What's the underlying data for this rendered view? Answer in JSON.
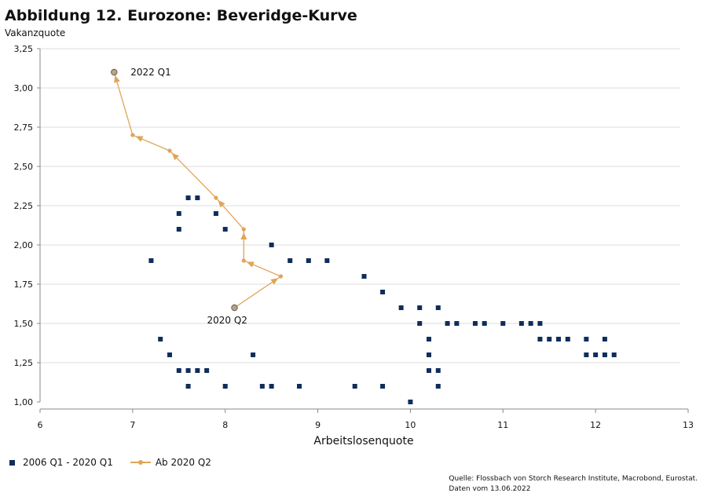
{
  "title": "Abbildung 12. Eurozone: Beveridge-Kurve",
  "chart_data": {
    "type": "scatter",
    "title": "Abbildung 12. Eurozone: Beveridge-Kurve",
    "xlabel": "Arbeitslosenquote",
    "ylabel": "Vakanzquote",
    "xlim": [
      6,
      13
    ],
    "ylim": [
      1.0,
      3.25
    ],
    "x_ticks": [
      "6",
      "7",
      "8",
      "9",
      "10",
      "11",
      "12",
      "13"
    ],
    "y_ticks": [
      "1,00",
      "1,25",
      "1,50",
      "1,75",
      "2,00",
      "2,25",
      "2,50",
      "2,75",
      "3,00",
      "3,25"
    ],
    "grid": "horizontal",
    "legend_position": "bottom-left",
    "series": [
      {
        "name": "2006 Q1 - 2020 Q1",
        "color": "#0f2d5c",
        "marker": "square",
        "points": [
          [
            7.2,
            1.9
          ],
          [
            7.3,
            1.4
          ],
          [
            7.4,
            1.3
          ],
          [
            7.5,
            1.2
          ],
          [
            7.5,
            2.2
          ],
          [
            7.5,
            2.1
          ],
          [
            7.6,
            2.3
          ],
          [
            7.6,
            1.2
          ],
          [
            7.6,
            1.1
          ],
          [
            7.7,
            2.3
          ],
          [
            7.7,
            1.2
          ],
          [
            7.8,
            1.2
          ],
          [
            7.9,
            2.2
          ],
          [
            8.0,
            2.1
          ],
          [
            8.0,
            1.1
          ],
          [
            8.3,
            1.3
          ],
          [
            8.4,
            1.1
          ],
          [
            8.5,
            1.1
          ],
          [
            8.5,
            2.0
          ],
          [
            8.7,
            1.9
          ],
          [
            8.8,
            1.1
          ],
          [
            8.9,
            1.9
          ],
          [
            9.1,
            1.9
          ],
          [
            9.4,
            1.1
          ],
          [
            9.5,
            1.8
          ],
          [
            9.7,
            1.7
          ],
          [
            9.7,
            1.1
          ],
          [
            9.9,
            1.6
          ],
          [
            10.0,
            1.0
          ],
          [
            10.1,
            1.6
          ],
          [
            10.1,
            1.5
          ],
          [
            10.2,
            1.4
          ],
          [
            10.2,
            1.3
          ],
          [
            10.2,
            1.2
          ],
          [
            10.3,
            1.6
          ],
          [
            10.3,
            1.2
          ],
          [
            10.3,
            1.1
          ],
          [
            10.4,
            1.5
          ],
          [
            10.5,
            1.5
          ],
          [
            10.7,
            1.5
          ],
          [
            10.8,
            1.5
          ],
          [
            11.0,
            1.5
          ],
          [
            11.2,
            1.5
          ],
          [
            11.3,
            1.5
          ],
          [
            11.4,
            1.5
          ],
          [
            11.4,
            1.4
          ],
          [
            11.5,
            1.4
          ],
          [
            11.6,
            1.4
          ],
          [
            11.7,
            1.4
          ],
          [
            11.9,
            1.4
          ],
          [
            11.9,
            1.3
          ],
          [
            12.0,
            1.3
          ],
          [
            12.1,
            1.4
          ],
          [
            12.1,
            1.3
          ],
          [
            12.2,
            1.3
          ]
        ]
      },
      {
        "name": "Ab 2020 Q2",
        "color": "#e0a557",
        "marker": "circle",
        "points": [
          [
            8.1,
            1.6
          ],
          [
            8.6,
            1.8
          ],
          [
            8.2,
            1.9
          ],
          [
            8.2,
            2.1
          ],
          [
            7.9,
            2.3
          ],
          [
            7.4,
            2.6
          ],
          [
            7.0,
            2.7
          ],
          [
            6.8,
            3.1
          ]
        ]
      }
    ],
    "annotations": [
      {
        "text": "2022 Q1",
        "x": 6.8,
        "y": 3.1
      },
      {
        "text": "2020 Q2",
        "x": 8.1,
        "y": 1.6
      }
    ]
  },
  "legend": {
    "item1": "2006 Q1 - 2020 Q1",
    "item2": "Ab 2020 Q2"
  },
  "source": {
    "line1": "Quelle: Flossbach von Storch Research Institute, Macrobond, Eurostat.",
    "line2": "Daten vom 13.06.2022"
  },
  "colors": {
    "scatter": "#0f2d5c",
    "trajectory": "#e0a557",
    "endpoint": "#b8a27e",
    "grid": "#dedede"
  }
}
